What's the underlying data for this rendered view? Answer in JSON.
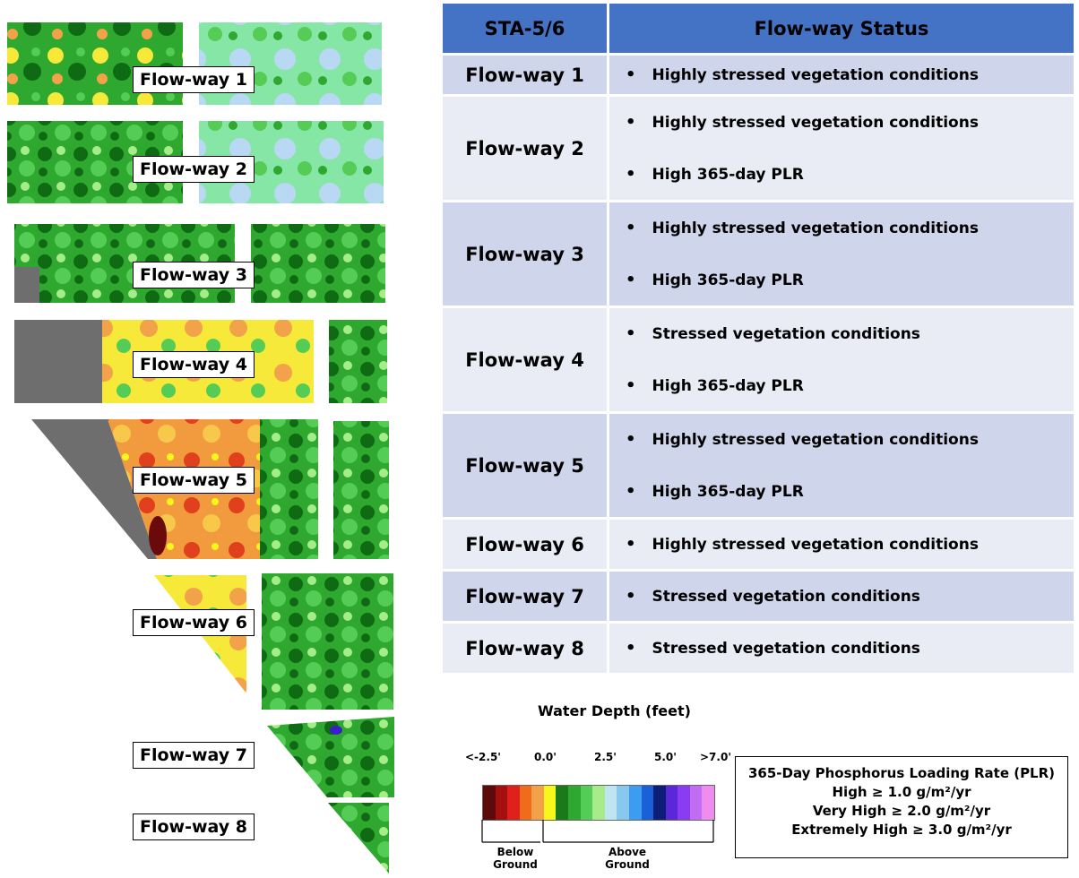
{
  "map": {
    "labels": [
      "Flow-way 1",
      "Flow-way 2",
      "Flow-way 3",
      "Flow-way 4",
      "Flow-way 5",
      "Flow-way 6",
      "Flow-way 7",
      "Flow-way 8"
    ]
  },
  "table": {
    "header_left": "STA-5/6",
    "header_right": "Flow-way Status",
    "rows": [
      {
        "name": "Flow-way 1",
        "items": [
          "Highly stressed vegetation conditions"
        ]
      },
      {
        "name": "Flow-way 2",
        "items": [
          "Highly stressed vegetation conditions",
          "High 365-day PLR"
        ]
      },
      {
        "name": "Flow-way 3",
        "items": [
          "Highly stressed vegetation conditions",
          "High 365-day PLR"
        ]
      },
      {
        "name": "Flow-way 4",
        "items": [
          "Stressed vegetation conditions",
          "High 365-day PLR"
        ]
      },
      {
        "name": "Flow-way 5",
        "items": [
          "Highly stressed vegetation conditions",
          "High 365-day PLR"
        ]
      },
      {
        "name": "Flow-way 6",
        "items": [
          "Highly stressed vegetation conditions"
        ]
      },
      {
        "name": "Flow-way 7",
        "items": [
          "Stressed vegetation conditions"
        ]
      },
      {
        "name": "Flow-way 8",
        "items": [
          "Stressed vegetation conditions"
        ]
      }
    ]
  },
  "legend": {
    "title": "Water Depth (feet)",
    "ticks": [
      "<-2.5'",
      "0.0'",
      "2.5'",
      "5.0'",
      ">7.0'"
    ],
    "colors": [
      "#5c0a0a",
      "#a50f0f",
      "#e0201a",
      "#f06c1c",
      "#f2a34a",
      "#f7f71a",
      "#1a7a1a",
      "#2ea82e",
      "#55cc55",
      "#a6ec8a",
      "#bfe4f2",
      "#88c8f0",
      "#3c9cf0",
      "#1a60d8",
      "#0c1e78",
      "#5a28d8",
      "#8a3cf2",
      "#c26cf2",
      "#f08cf0"
    ],
    "below": "Below Ground",
    "above": "Above Ground"
  },
  "plr": {
    "title": "365-Day Phosphorus Loading Rate (PLR)",
    "lines": [
      "High  ≥  1.0 g/m²/yr",
      "Very High ≥ 2.0 g/m²/yr",
      "Extremely High ≥  3.0 g/m²/yr"
    ]
  }
}
